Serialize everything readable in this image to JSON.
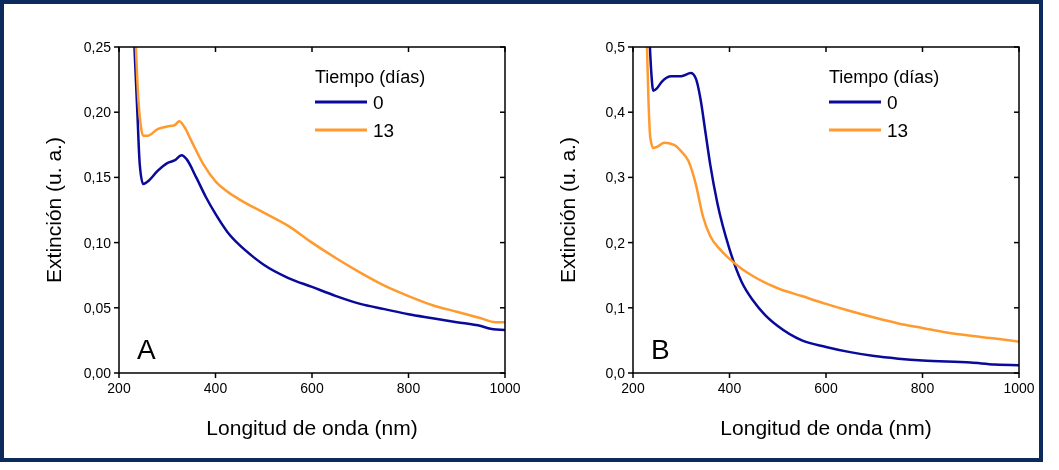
{
  "chart_data": [
    {
      "type": "line",
      "xlabel": "Longitud de onda (nm)",
      "ylabel": "Extinción (u. a.)",
      "legend_title": "Tiempo (días)",
      "legend": "top right",
      "annotations": [
        "A"
      ],
      "xlim": [
        200,
        1000
      ],
      "ylim": [
        0,
        0.25
      ],
      "xticks": [
        200,
        400,
        600,
        800,
        1000
      ],
      "yticks": [
        {
          "value": 0,
          "label": "0,00"
        },
        {
          "value": 0.05,
          "label": "0,05"
        },
        {
          "value": 0.1,
          "label": "0,10"
        },
        {
          "value": 0.15,
          "label": "0,15"
        },
        {
          "value": 0.2,
          "label": "0,20"
        },
        {
          "value": 0.25,
          "label": "0,25"
        }
      ],
      "series": [
        {
          "name": "0",
          "color": "#0a0a9a",
          "x": [
            232,
            238,
            243,
            250,
            260,
            280,
            300,
            315,
            330,
            340,
            360,
            380,
            400,
            425,
            450,
            475,
            500,
            550,
            600,
            650,
            700,
            750,
            800,
            850,
            900,
            950,
            970,
            1000
          ],
          "values": [
            0.25,
            0.2,
            0.16,
            0.145,
            0.147,
            0.155,
            0.161,
            0.163,
            0.167,
            0.164,
            0.15,
            0.135,
            0.122,
            0.108,
            0.098,
            0.09,
            0.083,
            0.073,
            0.066,
            0.059,
            0.053,
            0.049,
            0.045,
            0.042,
            0.039,
            0.036,
            0.034,
            0.033
          ]
        },
        {
          "name": "13",
          "color": "#ff9a2e",
          "x": [
            235,
            240,
            245,
            250,
            260,
            280,
            300,
            315,
            325,
            335,
            350,
            375,
            400,
            425,
            450,
            500,
            550,
            600,
            650,
            700,
            750,
            800,
            850,
            900,
            950,
            980,
            1000
          ],
          "values": [
            0.25,
            0.21,
            0.19,
            0.182,
            0.182,
            0.187,
            0.189,
            0.19,
            0.193,
            0.189,
            0.178,
            0.16,
            0.147,
            0.139,
            0.133,
            0.123,
            0.113,
            0.1,
            0.088,
            0.077,
            0.067,
            0.059,
            0.052,
            0.047,
            0.042,
            0.039,
            0.039
          ]
        }
      ]
    },
    {
      "type": "line",
      "xlabel": "Longitud de onda (nm)",
      "ylabel": "Extinción (u. a.)",
      "legend_title": "Tiempo (días)",
      "legend": "top right",
      "annotations": [
        "B"
      ],
      "xlim": [
        200,
        1000
      ],
      "ylim": [
        0,
        0.5
      ],
      "xticks": [
        200,
        400,
        600,
        800,
        1000
      ],
      "yticks": [
        {
          "value": 0,
          "label": "0,0"
        },
        {
          "value": 0.1,
          "label": "0,1"
        },
        {
          "value": 0.2,
          "label": "0,2"
        },
        {
          "value": 0.3,
          "label": "0,3"
        },
        {
          "value": 0.4,
          "label": "0,4"
        },
        {
          "value": 0.5,
          "label": "0,5"
        }
      ],
      "series": [
        {
          "name": "0",
          "color": "#0a0a9a",
          "x": [
            235,
            238,
            242,
            250,
            260,
            280,
            300,
            320,
            330,
            340,
            350,
            360,
            375,
            400,
            425,
            450,
            475,
            500,
            550,
            600,
            650,
            700,
            750,
            800,
            900,
            950,
            1000
          ],
          "values": [
            0.5,
            0.46,
            0.433,
            0.437,
            0.447,
            0.455,
            0.455,
            0.46,
            0.452,
            0.42,
            0.37,
            0.32,
            0.26,
            0.19,
            0.14,
            0.11,
            0.088,
            0.072,
            0.05,
            0.04,
            0.032,
            0.026,
            0.022,
            0.019,
            0.016,
            0.013,
            0.012
          ]
        },
        {
          "name": "13",
          "color": "#ff9a2e",
          "x": [
            229,
            232,
            236,
            242,
            250,
            265,
            285,
            300,
            315,
            330,
            345,
            360,
            380,
            400,
            425,
            450,
            500,
            550,
            600,
            650,
            700,
            750,
            800,
            850,
            900,
            950,
            1000
          ],
          "values": [
            0.5,
            0.42,
            0.36,
            0.345,
            0.347,
            0.353,
            0.35,
            0.34,
            0.325,
            0.29,
            0.24,
            0.21,
            0.19,
            0.175,
            0.16,
            0.148,
            0.13,
            0.118,
            0.106,
            0.095,
            0.085,
            0.076,
            0.069,
            0.062,
            0.057,
            0.053,
            0.048
          ]
        }
      ]
    }
  ]
}
